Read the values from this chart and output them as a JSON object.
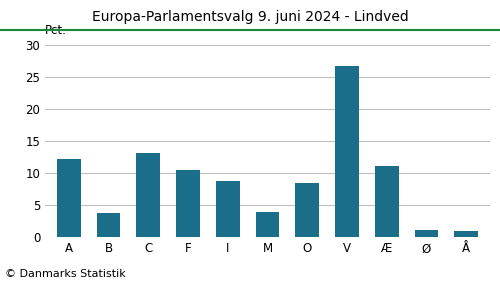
{
  "title": "Europa-Parlamentsvalg 9. juni 2024 - Lindved",
  "categories": [
    "A",
    "B",
    "C",
    "F",
    "I",
    "M",
    "O",
    "V",
    "Æ",
    "Ø",
    "Å"
  ],
  "values": [
    12.2,
    3.7,
    13.1,
    10.4,
    8.7,
    3.9,
    8.5,
    26.7,
    11.1,
    1.0,
    0.9
  ],
  "bar_color": "#1a6e8a",
  "ylabel": "Pct.",
  "ylim": [
    0,
    30
  ],
  "yticks": [
    0,
    5,
    10,
    15,
    20,
    25,
    30
  ],
  "footer": "© Danmarks Statistik",
  "title_color": "#000000",
  "title_line_color": "#1a8a3a",
  "background_color": "#ffffff",
  "grid_color": "#bbbbbb",
  "title_fontsize": 10,
  "label_fontsize": 8.5,
  "tick_fontsize": 8.5,
  "footer_fontsize": 8
}
